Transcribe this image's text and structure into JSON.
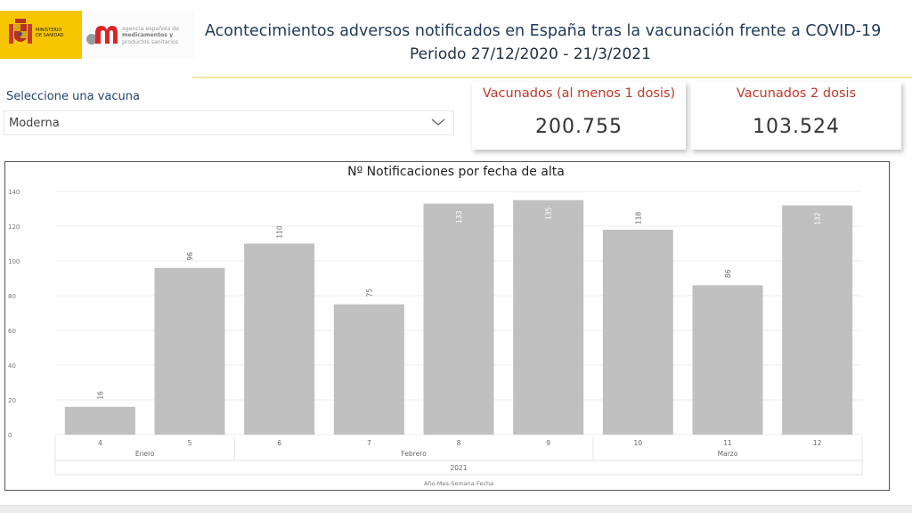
{
  "logos": {
    "ministerio_text": [
      "MINISTERIO",
      "DE SANIDAD"
    ],
    "aemps_text": [
      "agencia española de",
      "medicamentos y",
      "productos sanitarios"
    ]
  },
  "header": {
    "title": "Acontecimientos adversos notificados en España tras la vacunación frente a COVID-19",
    "subtitle": "Periodo 27/12/2020 - 21/3/2021"
  },
  "filter": {
    "label": "Seleccione una vacuna",
    "selected": "Moderna"
  },
  "cards": [
    {
      "title": "Vacunados (al menos 1 dosis)",
      "value": "200.755"
    },
    {
      "title": "Vacunados 2 dosis",
      "value": "103.524"
    }
  ],
  "colors": {
    "bar": "#c0c0c0",
    "card_title": "#c0392b",
    "gold": "#f7c600",
    "aemps_red": "#d9252a"
  },
  "chart_data": {
    "type": "bar",
    "title": "Nº Notificaciones por fecha de alta",
    "categories": [
      "4",
      "5",
      "6",
      "7",
      "8",
      "9",
      "10",
      "11",
      "12"
    ],
    "values": [
      16,
      96,
      110,
      75,
      133,
      135,
      118,
      86,
      132
    ],
    "yticks": [
      0,
      20,
      40,
      60,
      80,
      100,
      120,
      140
    ],
    "ylim": [
      0,
      140
    ],
    "grid": true,
    "data_labels": true,
    "month_groups": [
      {
        "label": "Enero",
        "weeks": [
          "4",
          "5"
        ]
      },
      {
        "label": "Febrero",
        "weeks": [
          "6",
          "7",
          "8",
          "9"
        ]
      },
      {
        "label": "Marzo",
        "weeks": [
          "10",
          "11",
          "12"
        ]
      }
    ],
    "year_label": "2021",
    "xlabel": "Año-Mes-Semana-Fecha"
  }
}
